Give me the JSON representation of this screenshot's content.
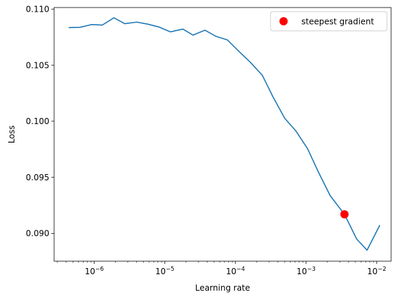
{
  "chart_data": {
    "type": "line",
    "title": "",
    "xlabel": "Learning rate",
    "ylabel": "Loss",
    "xscale": "log",
    "xlim": [
      2.7e-07,
      0.016
    ],
    "ylim": [
      0.08752,
      0.11014
    ],
    "x_ticks": [
      {
        "value": 1e-06,
        "base": "10",
        "exp": "−6"
      },
      {
        "value": 1e-05,
        "base": "10",
        "exp": "−5"
      },
      {
        "value": 0.0001,
        "base": "10",
        "exp": "−4"
      },
      {
        "value": 0.001,
        "base": "10",
        "exp": "−3"
      },
      {
        "value": 0.01,
        "base": "10",
        "exp": "−2"
      }
    ],
    "y_ticks": [
      {
        "value": 0.09,
        "label": "0.090"
      },
      {
        "value": 0.095,
        "label": "0.095"
      },
      {
        "value": 0.1,
        "label": "0.100"
      },
      {
        "value": 0.105,
        "label": "0.105"
      },
      {
        "value": 0.11,
        "label": "0.110"
      }
    ],
    "series": [
      {
        "color": "#1f77b4",
        "points": [
          [
            4.4e-07,
            0.10835
          ],
          [
            6.3e-07,
            0.10838
          ],
          [
            9.1e-07,
            0.10862
          ],
          [
            1.3e-06,
            0.10858
          ],
          [
            1.9e-06,
            0.10923
          ],
          [
            2.7e-06,
            0.1087
          ],
          [
            4e-06,
            0.10884
          ],
          [
            5.7e-06,
            0.10866
          ],
          [
            8.3e-06,
            0.1084
          ],
          [
            1.2e-05,
            0.10797
          ],
          [
            1.8e-05,
            0.10822
          ],
          [
            2.5e-05,
            0.10768
          ],
          [
            3.7e-05,
            0.10812
          ],
          [
            5.3e-05,
            0.10757
          ],
          [
            7.7e-05,
            0.10725
          ],
          [
            0.00011,
            0.10628
          ],
          [
            0.00016,
            0.1053
          ],
          [
            0.00024,
            0.1041
          ],
          [
            0.00034,
            0.10217
          ],
          [
            0.0005,
            0.10025
          ],
          [
            0.00072,
            0.09912
          ],
          [
            0.00105,
            0.09755
          ],
          [
            0.0015,
            0.09545
          ],
          [
            0.0022,
            0.09335
          ],
          [
            0.0035,
            0.0917
          ],
          [
            0.0052,
            0.0895
          ],
          [
            0.0073,
            0.0885
          ],
          [
            0.011,
            0.0907
          ]
        ]
      }
    ],
    "marker": {
      "label": "steepest gradient",
      "x": 0.0035,
      "y": 0.0917,
      "color": "#ff0000"
    },
    "legend": {
      "position": "top-right",
      "entries": [
        "steepest gradient"
      ]
    },
    "grid": false
  }
}
